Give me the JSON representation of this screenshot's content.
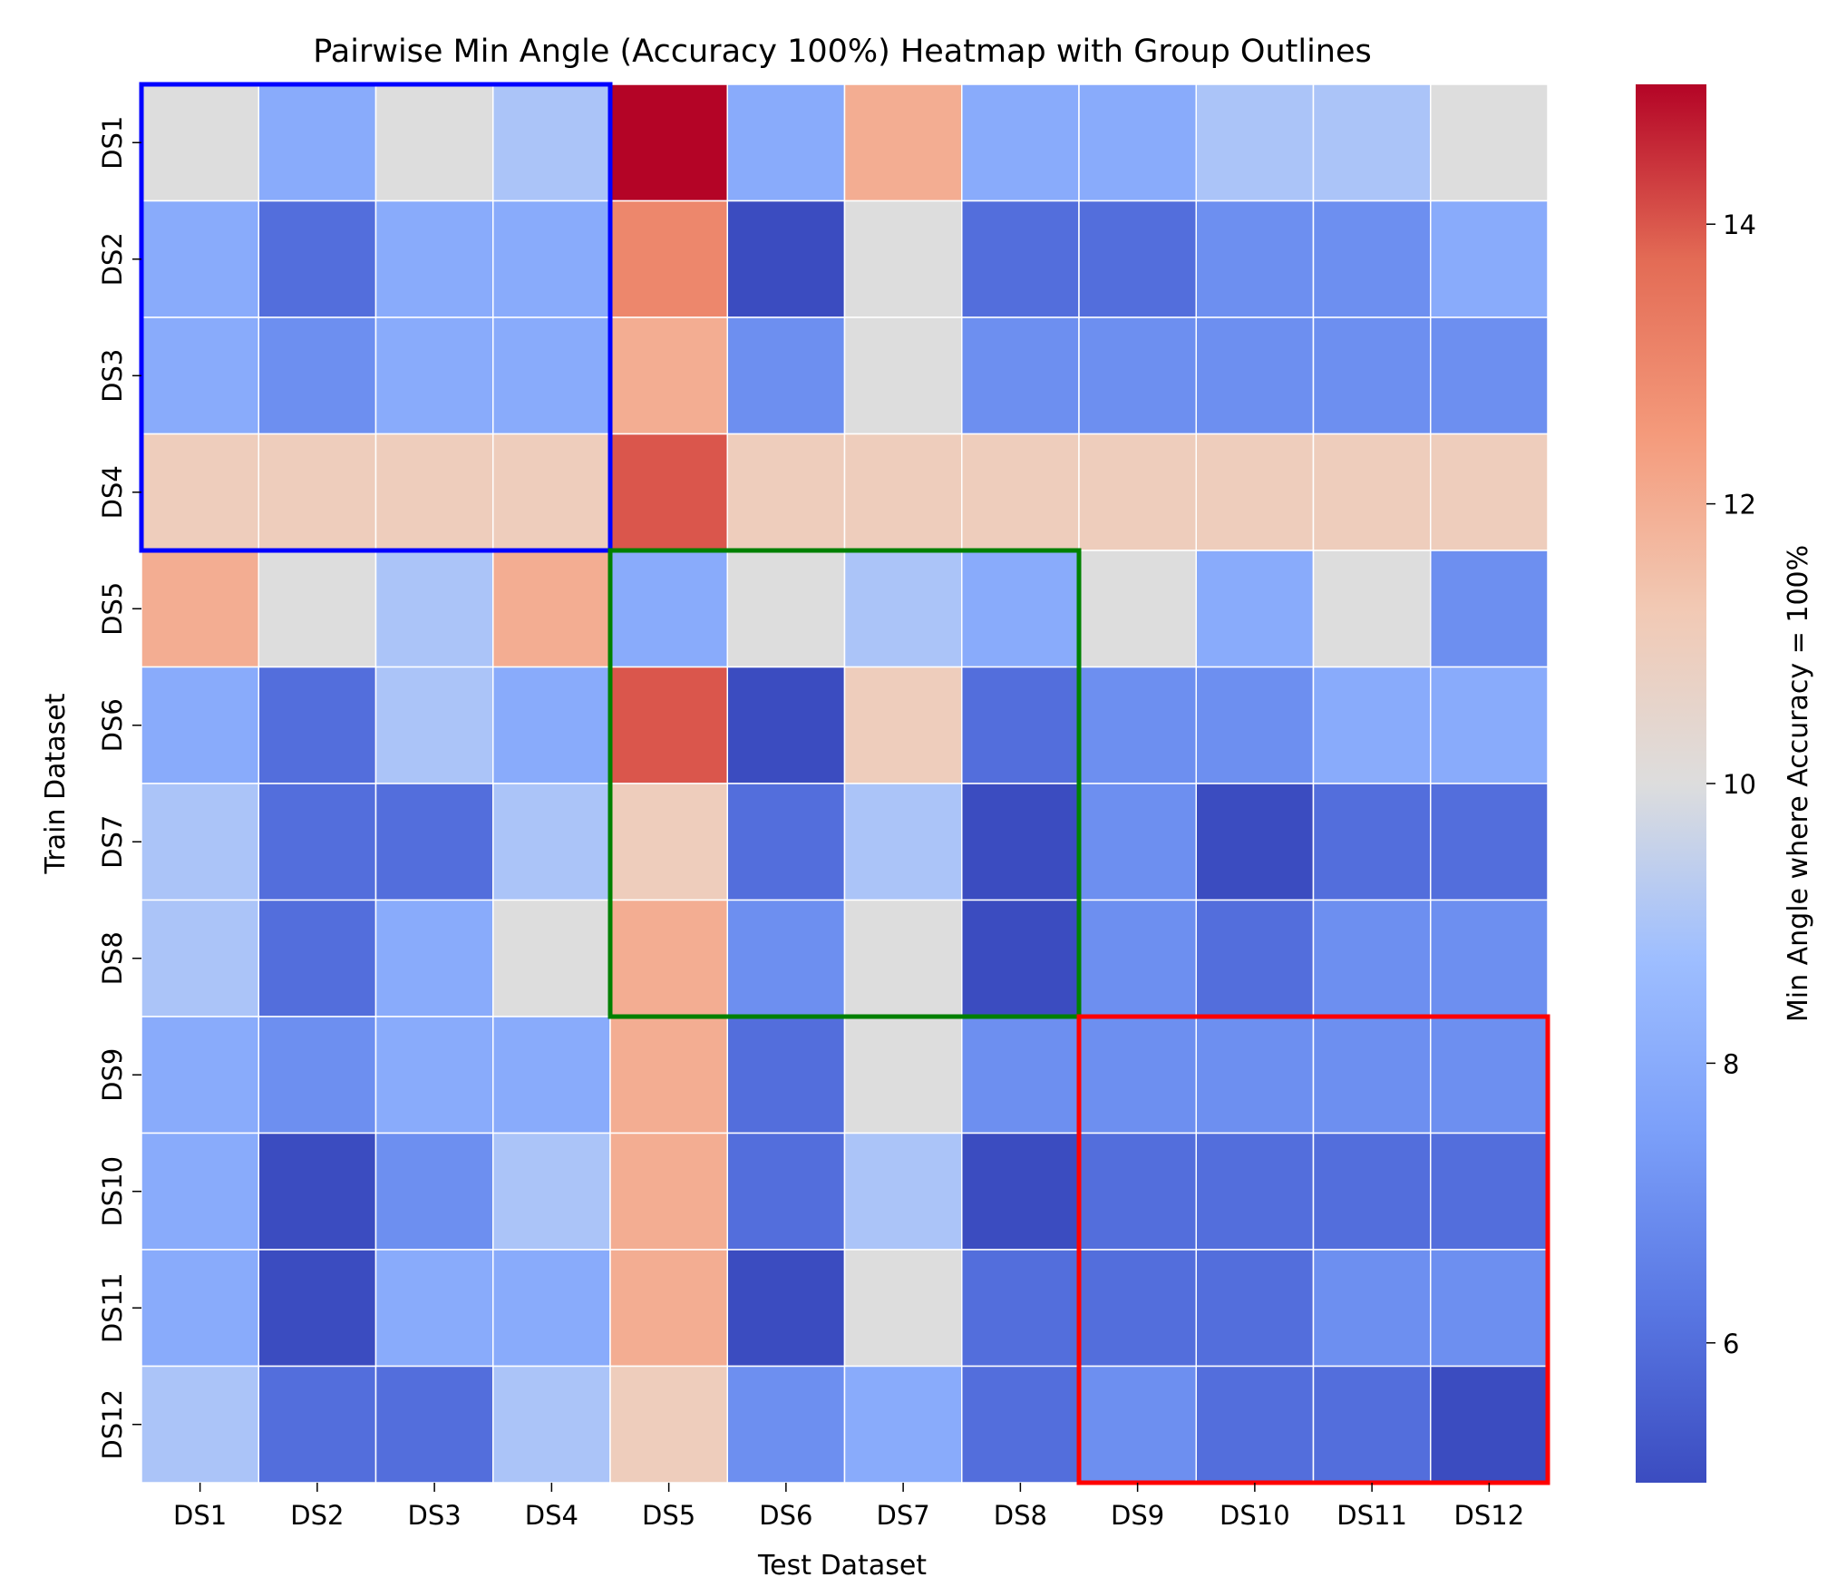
{
  "chart_data": {
    "type": "heatmap",
    "title": "Pairwise Min Angle (Accuracy 100%) Heatmap with Group Outlines",
    "xlabel": "Test Dataset",
    "ylabel": "Train Dataset",
    "x_categories": [
      "DS1",
      "DS2",
      "DS3",
      "DS4",
      "DS5",
      "DS6",
      "DS7",
      "DS8",
      "DS9",
      "DS10",
      "DS11",
      "DS12"
    ],
    "y_categories": [
      "DS1",
      "DS2",
      "DS3",
      "DS4",
      "DS5",
      "DS6",
      "DS7",
      "DS8",
      "DS9",
      "DS10",
      "DS11",
      "DS12"
    ],
    "values": [
      [
        10,
        8,
        10,
        9,
        15,
        8,
        12,
        8,
        8,
        9,
        9,
        10
      ],
      [
        8,
        6,
        8,
        8,
        13,
        5,
        10,
        6,
        6,
        7,
        7,
        8
      ],
      [
        8,
        7,
        8,
        8,
        12,
        7,
        10,
        7,
        7,
        7,
        7,
        7
      ],
      [
        11,
        11,
        11,
        11,
        14,
        11,
        11,
        11,
        11,
        11,
        11,
        11
      ],
      [
        12,
        10,
        9,
        12,
        8,
        10,
        9,
        8,
        10,
        8,
        10,
        7
      ],
      [
        8,
        6,
        9,
        8,
        14,
        5,
        11,
        6,
        7,
        7,
        8,
        8
      ],
      [
        9,
        6,
        6,
        9,
        11,
        6,
        9,
        5,
        7,
        5,
        6,
        6
      ],
      [
        9,
        6,
        8,
        10,
        12,
        7,
        10,
        5,
        7,
        6,
        7,
        7
      ],
      [
        8,
        7,
        8,
        8,
        12,
        6,
        10,
        7,
        7,
        7,
        7,
        7
      ],
      [
        8,
        5,
        7,
        9,
        12,
        6,
        9,
        5,
        6,
        6,
        6,
        6
      ],
      [
        8,
        5,
        8,
        8,
        12,
        5,
        10,
        6,
        6,
        6,
        7,
        7
      ],
      [
        9,
        6,
        6,
        9,
        11,
        7,
        8,
        6,
        7,
        6,
        6,
        5
      ]
    ],
    "colorbar": {
      "label": "Min Angle where Accuracy = 100%",
      "min": 5,
      "max": 15,
      "ticks": [
        6,
        8,
        10,
        12,
        14
      ],
      "colormap": "coolwarm"
    },
    "group_outlines": [
      {
        "start": 0,
        "end": 4,
        "color": "#0000ff"
      },
      {
        "start": 4,
        "end": 8,
        "color": "#008000"
      },
      {
        "start": 8,
        "end": 12,
        "color": "#ff0000"
      }
    ],
    "grid": false
  }
}
